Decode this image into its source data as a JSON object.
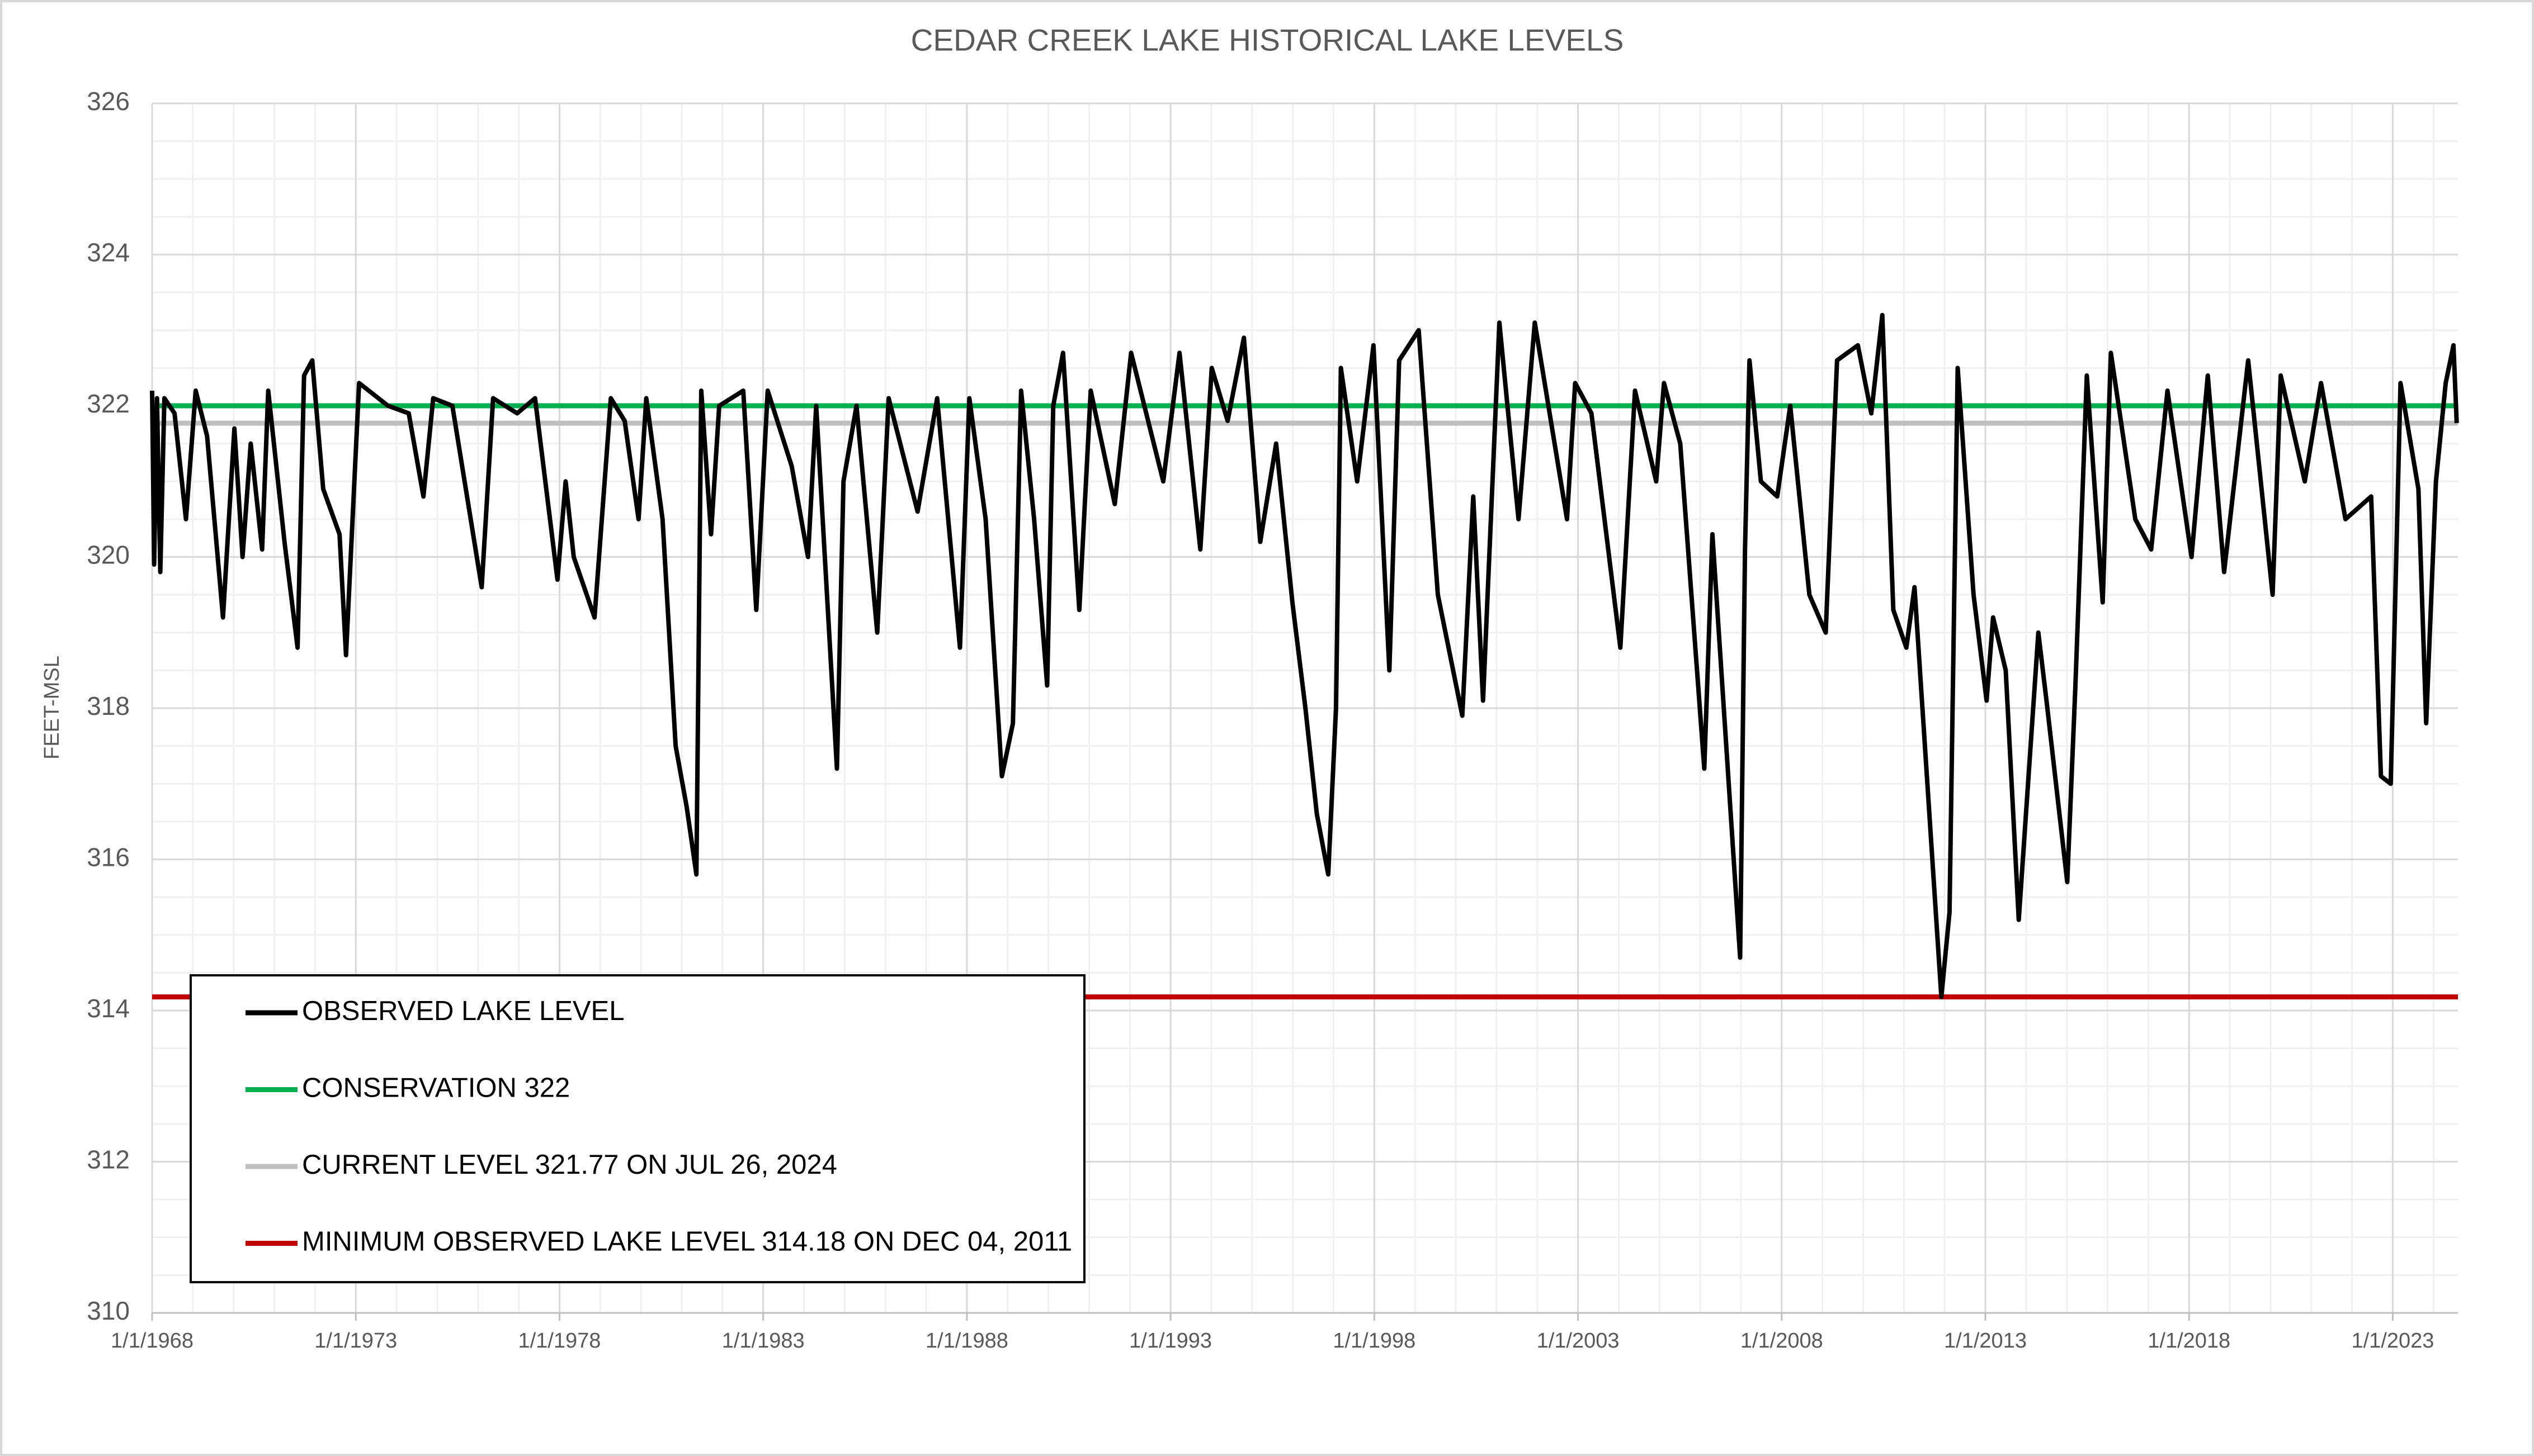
{
  "chart_data": {
    "type": "line",
    "title": "CEDAR CREEK LAKE HISTORICAL LAKE LEVELS",
    "y_label": "FEET-MSL",
    "x": [
      1968.0,
      1968.05,
      1968.12,
      1968.2,
      1968.3,
      1968.55,
      1968.83,
      1969.07,
      1969.35,
      1969.74,
      1970.02,
      1970.22,
      1970.42,
      1970.7,
      1970.85,
      1971.25,
      1971.57,
      1971.73,
      1971.93,
      1972.2,
      1972.6,
      1972.76,
      1973.08,
      1973.79,
      1974.3,
      1974.66,
      1974.9,
      1975.37,
      1976.09,
      1976.37,
      1976.96,
      1977.4,
      1977.95,
      1978.15,
      1978.35,
      1978.86,
      1979.26,
      1979.6,
      1979.94,
      1980.13,
      1980.53,
      1980.85,
      1981.12,
      1981.36,
      1981.48,
      1981.72,
      1981.92,
      1982.51,
      1982.83,
      1983.11,
      1983.7,
      1984.1,
      1984.3,
      1984.81,
      1984.97,
      1985.29,
      1985.8,
      1986.08,
      1986.79,
      1987.27,
      1987.83,
      1988.06,
      1988.46,
      1988.86,
      1989.13,
      1989.33,
      1989.65,
      1989.97,
      1990.12,
      1990.36,
      1990.76,
      1991.04,
      1991.63,
      1992.03,
      1992.82,
      1993.22,
      1993.73,
      1994.01,
      1994.4,
      1994.8,
      1995.2,
      1995.59,
      1995.99,
      1996.31,
      1996.59,
      1996.87,
      1997.06,
      1997.18,
      1997.58,
      1997.98,
      1998.37,
      1998.61,
      1999.09,
      1999.56,
      2000.16,
      2000.43,
      2000.67,
      2001.07,
      2001.54,
      2001.94,
      2002.73,
      2002.93,
      2003.33,
      2004.04,
      2004.4,
      2004.92,
      2005.11,
      2005.51,
      2006.1,
      2006.3,
      2006.98,
      2007.1,
      2007.21,
      2007.49,
      2007.89,
      2008.21,
      2008.68,
      2009.08,
      2009.36,
      2009.87,
      2010.2,
      2010.47,
      2010.74,
      2011.06,
      2011.26,
      2011.92,
      2012.12,
      2012.32,
      2012.71,
      2013.03,
      2013.19,
      2013.5,
      2013.82,
      2014.3,
      2014.5,
      2015.01,
      2015.21,
      2015.49,
      2015.88,
      2016.08,
      2016.68,
      2017.07,
      2017.47,
      2018.06,
      2018.46,
      2018.86,
      2019.45,
      2020.05,
      2020.25,
      2020.84,
      2021.24,
      2021.84,
      2022.47,
      2022.71,
      2022.95,
      2023.19,
      2023.63,
      2023.82,
      2024.06,
      2024.3,
      2024.49,
      2024.57
    ],
    "series": [
      {
        "name": "OBSERVED LAKE LEVEL",
        "color": "#000000",
        "values": [
          322.2,
          319.9,
          322.1,
          319.8,
          322.1,
          321.9,
          320.5,
          322.2,
          321.6,
          319.2,
          321.7,
          320.0,
          321.5,
          320.1,
          322.2,
          320.2,
          318.8,
          322.4,
          322.6,
          320.9,
          320.3,
          318.7,
          322.3,
          322.0,
          321.9,
          320.8,
          322.1,
          322.0,
          319.6,
          322.1,
          321.9,
          322.1,
          319.7,
          321.0,
          320.0,
          319.2,
          322.1,
          321.8,
          320.5,
          322.1,
          320.5,
          317.5,
          316.7,
          315.8,
          322.2,
          320.3,
          322.0,
          322.2,
          319.3,
          322.2,
          321.2,
          320.0,
          322.0,
          317.2,
          321.0,
          322.0,
          319.0,
          322.1,
          320.6,
          322.1,
          318.8,
          322.1,
          320.5,
          317.1,
          317.8,
          322.2,
          320.5,
          318.3,
          322.0,
          322.7,
          319.3,
          322.2,
          320.7,
          322.7,
          321.0,
          322.7,
          320.1,
          322.5,
          321.8,
          322.9,
          320.2,
          321.5,
          319.4,
          318.0,
          316.6,
          315.8,
          318.0,
          322.5,
          321.0,
          322.8,
          318.5,
          322.6,
          323.0,
          319.5,
          317.9,
          320.8,
          318.1,
          323.1,
          320.5,
          323.1,
          320.5,
          322.3,
          321.9,
          318.8,
          322.2,
          321.0,
          322.3,
          321.5,
          317.2,
          320.3,
          314.7,
          320.1,
          322.6,
          321.0,
          320.8,
          322.0,
          319.5,
          319.0,
          322.6,
          322.8,
          321.9,
          323.2,
          319.3,
          318.8,
          319.6,
          314.18,
          315.3,
          322.5,
          319.5,
          318.1,
          319.2,
          318.5,
          315.2,
          319.0,
          318.1,
          315.7,
          318.3,
          322.4,
          319.4,
          322.7,
          320.5,
          320.1,
          322.2,
          320.0,
          322.4,
          319.8,
          322.6,
          319.5,
          322.4,
          321.0,
          322.3,
          320.5,
          320.8,
          317.1,
          317.0,
          322.3,
          320.9,
          317.8,
          321.0,
          322.3,
          322.8,
          321.77
        ]
      }
    ],
    "reference_lines": [
      {
        "name": "CONSERVATION 322",
        "value": 322,
        "color": "#00b050"
      },
      {
        "name": "CURRENT LEVEL 321.77 ON JUL 26, 2024",
        "value": 321.77,
        "color": "#bfbfbf"
      },
      {
        "name": "MINIMUM OBSERVED LAKE LEVEL 314.18 ON DEC 04, 2011",
        "value": 314.18,
        "color": "#c00000"
      }
    ],
    "xlim": [
      1968,
      2024.6
    ],
    "xticks": [
      {
        "value": 1968,
        "label": "1/1/1968"
      },
      {
        "value": 1973,
        "label": "1/1/1973"
      },
      {
        "value": 1978,
        "label": "1/1/1978"
      },
      {
        "value": 1983,
        "label": "1/1/1983"
      },
      {
        "value": 1988,
        "label": "1/1/1988"
      },
      {
        "value": 1993,
        "label": "1/1/1993"
      },
      {
        "value": 1998,
        "label": "1/1/1998"
      },
      {
        "value": 2003,
        "label": "1/1/2003"
      },
      {
        "value": 2008,
        "label": "1/1/2008"
      },
      {
        "value": 2013,
        "label": "1/1/2013"
      },
      {
        "value": 2018,
        "label": "1/1/2018"
      },
      {
        "value": 2023,
        "label": "1/1/2023"
      }
    ],
    "ylim": [
      310,
      326
    ],
    "yticks": [
      310,
      312,
      314,
      316,
      318,
      320,
      322,
      324,
      326
    ],
    "grid": true,
    "minor_grid": {
      "x": 1,
      "y": 0.5
    },
    "legend": "lower left"
  }
}
